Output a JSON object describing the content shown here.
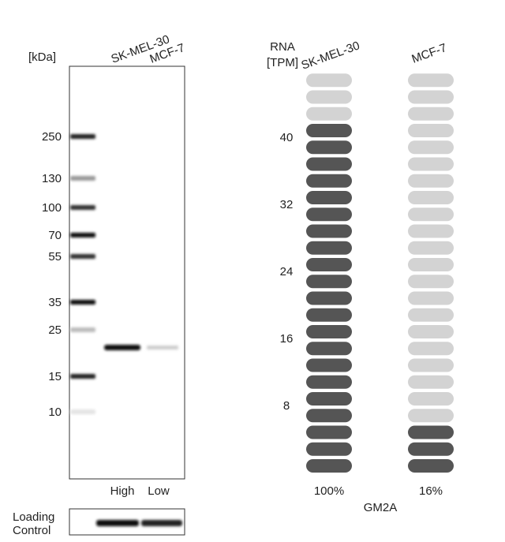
{
  "western_blot": {
    "unit_label": "[kDa]",
    "lanes": [
      "SK-MEL-30",
      "MCF-7"
    ],
    "markers": [
      "250",
      "130",
      "100",
      "70",
      "55",
      "35",
      "25",
      "15",
      "10"
    ],
    "lane_levels": [
      "High",
      "Low"
    ],
    "loading_control": [
      "Loading",
      "Control"
    ]
  },
  "rna": {
    "axis_title": [
      "RNA",
      "[TPM]"
    ],
    "ticks": [
      40,
      32,
      24,
      16,
      8
    ],
    "tpm_per_pill": 2,
    "total_pills": 24,
    "columns": [
      {
        "name": "SK-MEL-30",
        "filled": 21,
        "percent": "100%"
      },
      {
        "name": "MCF-7",
        "filled": 3,
        "percent": "16%"
      }
    ],
    "gene": "GM2A"
  }
}
